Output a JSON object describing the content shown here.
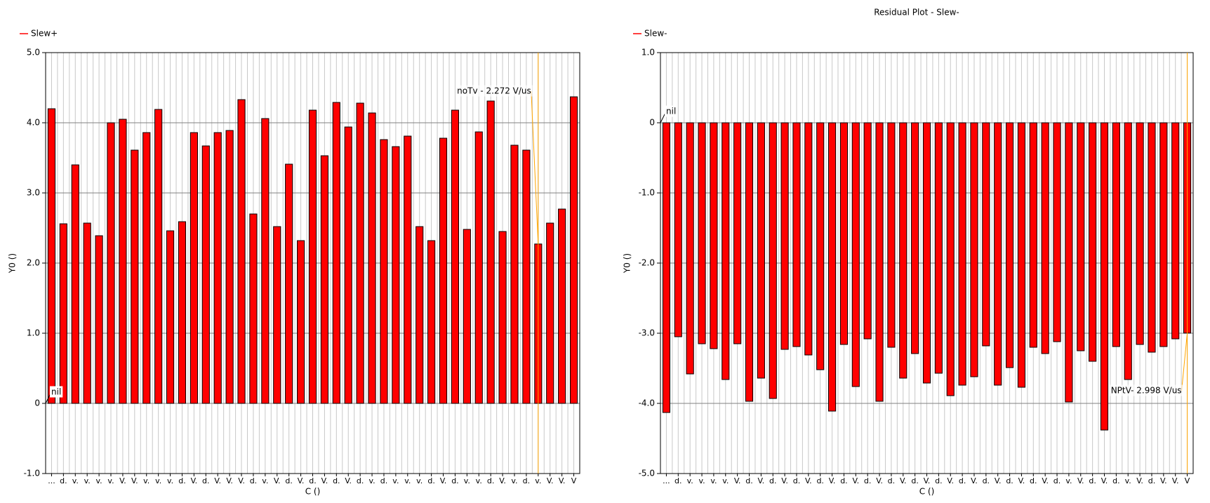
{
  "chart_data": [
    {
      "type": "bar",
      "legend": "top-left",
      "series": [
        {
          "name": "Slew+",
          "color": "#ff0000",
          "values": [
            4.2,
            2.56,
            3.4,
            2.57,
            2.39,
            4.0,
            4.05,
            3.61,
            3.86,
            4.19,
            2.46,
            2.59,
            3.86,
            3.67,
            3.86,
            3.89,
            4.33,
            2.7,
            4.06,
            2.52,
            3.41,
            2.32,
            4.18,
            3.53,
            4.29,
            3.94,
            4.28,
            4.14,
            3.76,
            3.66,
            3.81,
            2.52,
            2.32,
            3.78,
            4.18,
            2.48,
            3.87,
            4.31,
            2.45,
            3.68,
            3.61,
            2.272,
            2.57,
            2.77,
            4.37
          ]
        }
      ],
      "categories": [
        "...",
        "d.",
        "v.",
        "v.",
        "v.",
        "v.",
        "V.",
        "V.",
        "v.",
        "v.",
        "v.",
        "d.",
        "V.",
        "d.",
        "V.",
        "V.",
        "V.",
        "d.",
        "v.",
        "V.",
        "d.",
        "V.",
        "d.",
        "V.",
        "d.",
        "V.",
        "d.",
        "v.",
        "d.",
        "v.",
        "v.",
        "v.",
        "d.",
        "V.",
        "d.",
        "v.",
        "v.",
        "d.",
        "V.",
        "v.",
        "d.",
        "v.",
        "V.",
        "V.",
        "V"
      ],
      "x_label": "C ()",
      "y_label": "Y0 ()",
      "ylim": [
        -1,
        5
      ],
      "yticks": [
        {
          "value": -1,
          "label": "-1.0"
        },
        0,
        {
          "value": 1,
          "label": "1.0"
        },
        {
          "value": 2,
          "label": "2.0"
        },
        {
          "value": 3,
          "label": "3.0"
        },
        {
          "value": 4,
          "label": "4.0"
        },
        {
          "value": 5,
          "label": "5.0"
        }
      ],
      "grid": true,
      "annotations": [
        {
          "text": "nil",
          "index": 0
        },
        {
          "text": "noTv - 2.272 V/us",
          "index": 41,
          "color": "#ffa500"
        }
      ]
    },
    {
      "type": "bar",
      "title": "Residual Plot - Slew-",
      "legend": "top-left",
      "series": [
        {
          "name": "Slew-",
          "color": "#ff0000",
          "values": [
            -4.13,
            -3.05,
            -3.58,
            -3.15,
            -3.22,
            -3.66,
            -3.15,
            -3.97,
            -3.64,
            -3.93,
            -3.23,
            -3.19,
            -3.31,
            -3.52,
            -4.11,
            -3.16,
            -3.76,
            -3.08,
            -3.97,
            -3.2,
            -3.64,
            -3.29,
            -3.71,
            -3.57,
            -3.89,
            -3.74,
            -3.62,
            -3.18,
            -3.74,
            -3.49,
            -3.77,
            -3.2,
            -3.29,
            -3.12,
            -3.98,
            -3.25,
            -3.4,
            -4.38,
            -3.19,
            -3.66,
            -3.16,
            -3.27,
            -3.19,
            -3.08,
            -2.998
          ]
        }
      ],
      "categories": [
        "...",
        "d.",
        "v.",
        "v.",
        "v.",
        "v.",
        "V.",
        "d.",
        "V.",
        "d.",
        "V.",
        "d.",
        "V.",
        "d.",
        "V.",
        "d.",
        "V.",
        "d.",
        "V.",
        "d.",
        "V.",
        "d.",
        "V.",
        "d.",
        "V.",
        "d.",
        "V.",
        "d.",
        "V.",
        "d.",
        "V.",
        "d.",
        "V.",
        "d.",
        "v.",
        "V.",
        "d.",
        "V.",
        "d.",
        "v.",
        "V.",
        "d.",
        "V.",
        "V.",
        "V"
      ],
      "x_label": "C ()",
      "y_label": "Y0 ()",
      "ylim": [
        -5,
        1
      ],
      "yticks": [
        {
          "value": -5,
          "label": "-5.0"
        },
        {
          "value": -4,
          "label": "-4.0"
        },
        {
          "value": -3,
          "label": "-3.0"
        },
        {
          "value": -2,
          "label": "-2.0"
        },
        {
          "value": -1,
          "label": "-1.0"
        },
        0,
        {
          "value": 1,
          "label": "1.0"
        }
      ],
      "grid": true,
      "annotations": [
        {
          "text": "nil",
          "index": 0
        },
        {
          "text": "NPtV- 2.998 V/us",
          "index": 44,
          "color": "#ffa500"
        }
      ]
    }
  ]
}
